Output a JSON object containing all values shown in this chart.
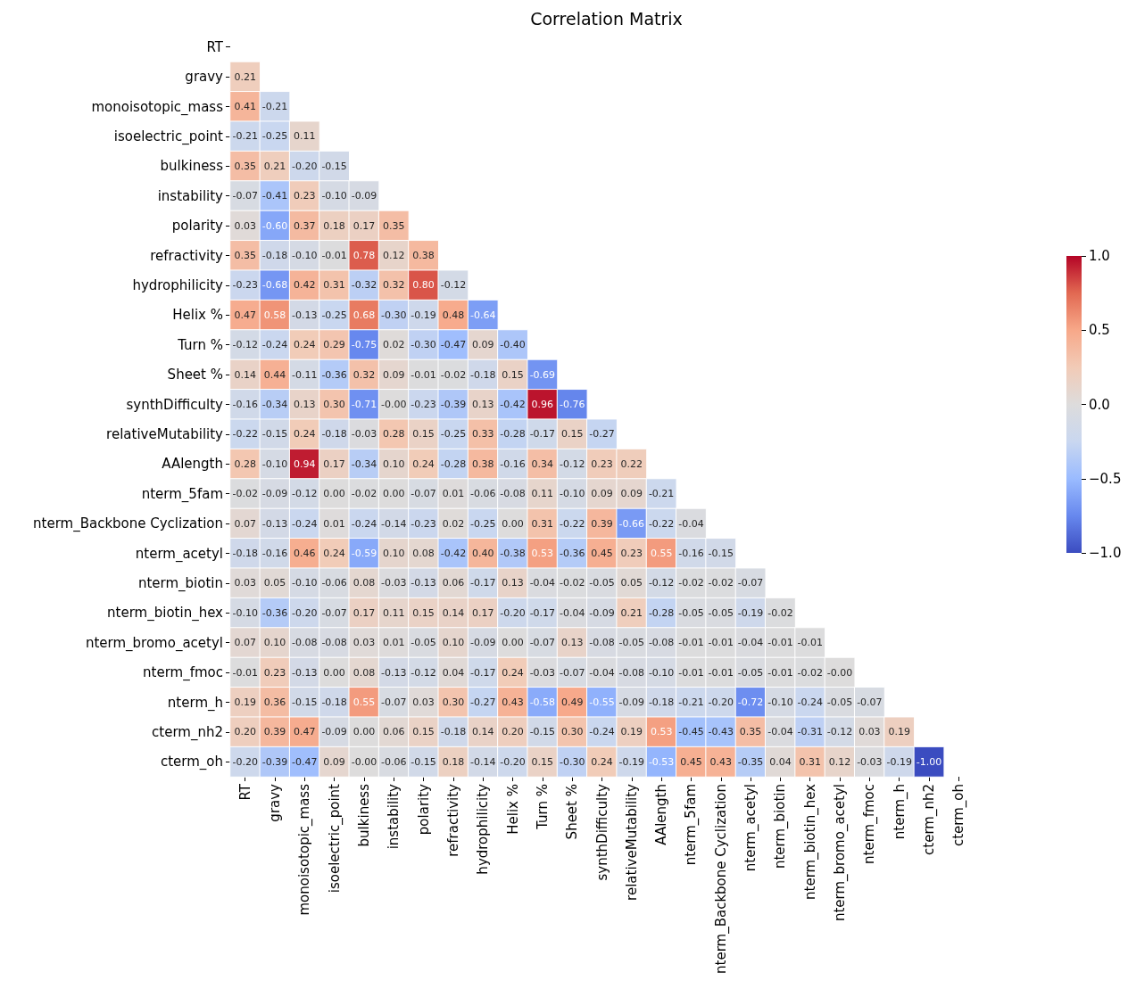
{
  "chart_data": {
    "type": "heatmap",
    "title": "Correlation Matrix",
    "categories": [
      "RT",
      "gravy",
      "monoisotopic_mass",
      "isoelectric_point",
      "bulkiness",
      "instability",
      "polarity",
      "refractivity",
      "hydrophilicity",
      "Helix %",
      "Turn %",
      "Sheet %",
      "synthDifficulty",
      "relativeMutability",
      "AAlength",
      "nterm_5fam",
      "nterm_Backbone Cyclization",
      "nterm_acetyl",
      "nterm_biotin",
      "nterm_biotin_hex",
      "nterm_bromo_acetyl",
      "nterm_fmoc",
      "nterm_h",
      "cterm_nh2",
      "cterm_oh"
    ],
    "y_categories": [
      "RT",
      "gravy",
      "monoisotopic_mass",
      "isoelectric_point",
      "bulkiness",
      "instability",
      "polarity",
      "refractivity",
      "hydrophilicity",
      "Helix %",
      "Turn %",
      "Sheet %",
      "synthDifficulty",
      "relativeMutability",
      "AAlength",
      "nterm_5fam",
      "nterm_Backbone Cyclization",
      "nterm_acetyl",
      "nterm_biotin",
      "nterm_biotin_hex",
      "nterm_bromo_acetyl",
      "nterm_fmoc",
      "nterm_h",
      "cterm_nh2",
      "cterm_oh"
    ],
    "cells": [
      [
        null,
        null,
        null,
        null,
        null,
        null,
        null,
        null,
        null,
        null,
        null,
        null,
        null,
        null,
        null,
        null,
        null,
        null,
        null,
        null,
        null,
        null,
        null,
        null,
        null
      ],
      [
        0.21,
        null,
        null,
        null,
        null,
        null,
        null,
        null,
        null,
        null,
        null,
        null,
        null,
        null,
        null,
        null,
        null,
        null,
        null,
        null,
        null,
        null,
        null,
        null,
        null
      ],
      [
        0.41,
        -0.21,
        null,
        null,
        null,
        null,
        null,
        null,
        null,
        null,
        null,
        null,
        null,
        null,
        null,
        null,
        null,
        null,
        null,
        null,
        null,
        null,
        null,
        null,
        null
      ],
      [
        -0.21,
        -0.25,
        0.11,
        null,
        null,
        null,
        null,
        null,
        null,
        null,
        null,
        null,
        null,
        null,
        null,
        null,
        null,
        null,
        null,
        null,
        null,
        null,
        null,
        null,
        null
      ],
      [
        0.35,
        0.21,
        -0.2,
        -0.15,
        null,
        null,
        null,
        null,
        null,
        null,
        null,
        null,
        null,
        null,
        null,
        null,
        null,
        null,
        null,
        null,
        null,
        null,
        null,
        null,
        null
      ],
      [
        -0.07,
        -0.41,
        0.23,
        -0.1,
        -0.09,
        null,
        null,
        null,
        null,
        null,
        null,
        null,
        null,
        null,
        null,
        null,
        null,
        null,
        null,
        null,
        null,
        null,
        null,
        null,
        null
      ],
      [
        0.03,
        -0.6,
        0.37,
        0.18,
        0.17,
        0.35,
        null,
        null,
        null,
        null,
        null,
        null,
        null,
        null,
        null,
        null,
        null,
        null,
        null,
        null,
        null,
        null,
        null,
        null,
        null
      ],
      [
        0.35,
        -0.18,
        -0.1,
        -0.01,
        0.78,
        0.12,
        0.38,
        null,
        null,
        null,
        null,
        null,
        null,
        null,
        null,
        null,
        null,
        null,
        null,
        null,
        null,
        null,
        null,
        null,
        null
      ],
      [
        -0.23,
        -0.68,
        0.42,
        0.31,
        -0.32,
        0.32,
        0.8,
        -0.12,
        null,
        null,
        null,
        null,
        null,
        null,
        null,
        null,
        null,
        null,
        null,
        null,
        null,
        null,
        null,
        null,
        null
      ],
      [
        0.47,
        0.58,
        -0.13,
        -0.25,
        0.68,
        -0.3,
        -0.19,
        0.48,
        -0.64,
        null,
        null,
        null,
        null,
        null,
        null,
        null,
        null,
        null,
        null,
        null,
        null,
        null,
        null,
        null,
        null
      ],
      [
        -0.12,
        -0.24,
        0.24,
        0.29,
        -0.75,
        0.02,
        -0.3,
        -0.47,
        0.09,
        -0.4,
        null,
        null,
        null,
        null,
        null,
        null,
        null,
        null,
        null,
        null,
        null,
        null,
        null,
        null,
        null
      ],
      [
        0.14,
        0.44,
        -0.11,
        -0.36,
        0.32,
        0.09,
        -0.01,
        -0.02,
        -0.18,
        0.15,
        -0.69,
        null,
        null,
        null,
        null,
        null,
        null,
        null,
        null,
        null,
        null,
        null,
        null,
        null,
        null
      ],
      [
        -0.16,
        -0.34,
        0.13,
        0.3,
        -0.71,
        -0.0,
        -0.23,
        -0.39,
        0.13,
        -0.42,
        0.96,
        -0.76,
        null,
        null,
        null,
        null,
        null,
        null,
        null,
        null,
        null,
        null,
        null,
        null,
        null
      ],
      [
        -0.22,
        -0.15,
        0.24,
        -0.18,
        -0.03,
        0.28,
        0.15,
        -0.25,
        0.33,
        -0.28,
        -0.17,
        0.15,
        -0.27,
        null,
        null,
        null,
        null,
        null,
        null,
        null,
        null,
        null,
        null,
        null,
        null
      ],
      [
        0.28,
        -0.1,
        0.94,
        0.17,
        -0.34,
        0.1,
        0.24,
        -0.28,
        0.38,
        -0.16,
        0.34,
        -0.12,
        0.23,
        0.22,
        null,
        null,
        null,
        null,
        null,
        null,
        null,
        null,
        null,
        null,
        null
      ],
      [
        -0.02,
        -0.09,
        -0.12,
        0.0,
        -0.02,
        0.0,
        -0.07,
        0.01,
        -0.06,
        -0.08,
        0.11,
        -0.1,
        0.09,
        0.09,
        -0.21,
        null,
        null,
        null,
        null,
        null,
        null,
        null,
        null,
        null,
        null
      ],
      [
        0.07,
        -0.13,
        -0.24,
        0.01,
        -0.24,
        -0.14,
        -0.23,
        0.02,
        -0.25,
        0.0,
        0.31,
        -0.22,
        0.39,
        -0.66,
        -0.22,
        -0.04,
        null,
        null,
        null,
        null,
        null,
        null,
        null,
        null,
        null
      ],
      [
        -0.18,
        -0.16,
        0.46,
        0.24,
        -0.59,
        0.1,
        0.08,
        -0.42,
        0.4,
        -0.38,
        0.53,
        -0.36,
        0.45,
        0.23,
        0.55,
        -0.16,
        -0.15,
        null,
        null,
        null,
        null,
        null,
        null,
        null,
        null
      ],
      [
        0.03,
        0.05,
        -0.1,
        -0.06,
        0.08,
        -0.03,
        -0.13,
        0.06,
        -0.17,
        0.13,
        -0.04,
        -0.02,
        -0.05,
        0.05,
        -0.12,
        -0.02,
        -0.02,
        -0.07,
        null,
        null,
        null,
        null,
        null,
        null,
        null
      ],
      [
        -0.1,
        -0.36,
        -0.2,
        -0.07,
        0.17,
        0.11,
        0.15,
        0.14,
        0.17,
        -0.2,
        -0.17,
        -0.04,
        -0.09,
        0.21,
        -0.28,
        -0.05,
        -0.05,
        -0.19,
        -0.02,
        null,
        null,
        null,
        null,
        null,
        null
      ],
      [
        0.07,
        0.1,
        -0.08,
        -0.08,
        0.03,
        0.01,
        -0.05,
        0.1,
        -0.09,
        0.0,
        -0.07,
        0.13,
        -0.08,
        -0.05,
        -0.08,
        -0.01,
        -0.01,
        -0.04,
        -0.01,
        -0.01,
        null,
        null,
        null,
        null,
        null
      ],
      [
        -0.01,
        0.23,
        -0.13,
        0.0,
        0.08,
        -0.13,
        -0.12,
        0.04,
        -0.17,
        0.24,
        -0.03,
        -0.07,
        -0.04,
        -0.08,
        -0.1,
        -0.01,
        -0.01,
        -0.05,
        -0.01,
        -0.02,
        -0.0,
        null,
        null,
        null,
        null
      ],
      [
        0.19,
        0.36,
        -0.15,
        -0.18,
        0.55,
        -0.07,
        0.03,
        0.3,
        -0.27,
        0.43,
        -0.58,
        0.49,
        -0.55,
        -0.09,
        -0.18,
        -0.21,
        -0.2,
        -0.72,
        -0.1,
        -0.24,
        -0.05,
        -0.07,
        null,
        null,
        null
      ],
      [
        0.2,
        0.39,
        0.47,
        -0.09,
        0.0,
        0.06,
        0.15,
        -0.18,
        0.14,
        0.2,
        -0.15,
        0.3,
        -0.24,
        0.19,
        0.53,
        -0.45,
        -0.43,
        0.35,
        -0.04,
        -0.31,
        -0.12,
        0.03,
        0.19,
        null,
        null
      ],
      [
        -0.2,
        -0.39,
        -0.47,
        0.09,
        -0.0,
        -0.06,
        -0.15,
        0.18,
        -0.14,
        -0.2,
        0.15,
        -0.3,
        0.24,
        -0.19,
        -0.53,
        0.45,
        0.43,
        -0.35,
        0.04,
        0.31,
        0.12,
        -0.03,
        -0.19,
        -1.0,
        null
      ]
    ],
    "cell_labels": [
      [
        null,
        null,
        null,
        null,
        null,
        null,
        null,
        null,
        null,
        null,
        null,
        null,
        null,
        null,
        null,
        null,
        null,
        null,
        null,
        null,
        null,
        null,
        null,
        null,
        null
      ],
      [
        "0.21",
        null,
        null,
        null,
        null,
        null,
        null,
        null,
        null,
        null,
        null,
        null,
        null,
        null,
        null,
        null,
        null,
        null,
        null,
        null,
        null,
        null,
        null,
        null,
        null
      ],
      [
        "0.41",
        "-0.21",
        null,
        null,
        null,
        null,
        null,
        null,
        null,
        null,
        null,
        null,
        null,
        null,
        null,
        null,
        null,
        null,
        null,
        null,
        null,
        null,
        null,
        null,
        null
      ],
      [
        "-0.21",
        "-0.25",
        "0.11",
        null,
        null,
        null,
        null,
        null,
        null,
        null,
        null,
        null,
        null,
        null,
        null,
        null,
        null,
        null,
        null,
        null,
        null,
        null,
        null,
        null,
        null
      ],
      [
        "0.35",
        "0.21",
        "-0.20",
        "-0.15",
        null,
        null,
        null,
        null,
        null,
        null,
        null,
        null,
        null,
        null,
        null,
        null,
        null,
        null,
        null,
        null,
        null,
        null,
        null,
        null,
        null
      ],
      [
        "-0.07",
        "-0.41",
        "0.23",
        "-0.10",
        "-0.09",
        null,
        null,
        null,
        null,
        null,
        null,
        null,
        null,
        null,
        null,
        null,
        null,
        null,
        null,
        null,
        null,
        null,
        null,
        null,
        null
      ],
      [
        "0.03",
        "-0.60",
        "0.37",
        "0.18",
        "0.17",
        "0.35",
        null,
        null,
        null,
        null,
        null,
        null,
        null,
        null,
        null,
        null,
        null,
        null,
        null,
        null,
        null,
        null,
        null,
        null,
        null
      ],
      [
        "0.35",
        "-0.18",
        "-0.10",
        "-0.01",
        "0.78",
        "0.12",
        "0.38",
        null,
        null,
        null,
        null,
        null,
        null,
        null,
        null,
        null,
        null,
        null,
        null,
        null,
        null,
        null,
        null,
        null,
        null
      ],
      [
        "-0.23",
        "-0.68",
        "0.42",
        "0.31",
        "-0.32",
        "0.32",
        "0.80",
        "-0.12",
        null,
        null,
        null,
        null,
        null,
        null,
        null,
        null,
        null,
        null,
        null,
        null,
        null,
        null,
        null,
        null,
        null
      ],
      [
        "0.47",
        "0.58",
        "-0.13",
        "-0.25",
        "0.68",
        "-0.30",
        "-0.19",
        "0.48",
        "-0.64",
        null,
        null,
        null,
        null,
        null,
        null,
        null,
        null,
        null,
        null,
        null,
        null,
        null,
        null,
        null,
        null
      ],
      [
        "-0.12",
        "-0.24",
        "0.24",
        "0.29",
        "-0.75",
        "0.02",
        "-0.30",
        "-0.47",
        "0.09",
        "-0.40",
        null,
        null,
        null,
        null,
        null,
        null,
        null,
        null,
        null,
        null,
        null,
        null,
        null,
        null,
        null
      ],
      [
        "0.14",
        "0.44",
        "-0.11",
        "-0.36",
        "0.32",
        "0.09",
        "-0.01",
        "-0.02",
        "-0.18",
        "0.15",
        "-0.69",
        null,
        null,
        null,
        null,
        null,
        null,
        null,
        null,
        null,
        null,
        null,
        null,
        null,
        null
      ],
      [
        "-0.16",
        "-0.34",
        "0.13",
        "0.30",
        "-0.71",
        "-0.00",
        "-0.23",
        "-0.39",
        "0.13",
        "-0.42",
        "0.96",
        "-0.76",
        null,
        null,
        null,
        null,
        null,
        null,
        null,
        null,
        null,
        null,
        null,
        null,
        null
      ],
      [
        "-0.22",
        "-0.15",
        "0.24",
        "-0.18",
        "-0.03",
        "0.28",
        "0.15",
        "-0.25",
        "0.33",
        "-0.28",
        "-0.17",
        "0.15",
        "-0.27",
        null,
        null,
        null,
        null,
        null,
        null,
        null,
        null,
        null,
        null,
        null,
        null
      ],
      [
        "0.28",
        "-0.10",
        "0.94",
        "0.17",
        "-0.34",
        "0.10",
        "0.24",
        "-0.28",
        "0.38",
        "-0.16",
        "0.34",
        "-0.12",
        "0.23",
        "0.22",
        null,
        null,
        null,
        null,
        null,
        null,
        null,
        null,
        null,
        null,
        null
      ],
      [
        "-0.02",
        "-0.09",
        "-0.12",
        "0.00",
        "-0.02",
        "0.00",
        "-0.07",
        "0.01",
        "-0.06",
        "-0.08",
        "0.11",
        "-0.10",
        "0.09",
        "0.09",
        "-0.21",
        null,
        null,
        null,
        null,
        null,
        null,
        null,
        null,
        null,
        null
      ],
      [
        "0.07",
        "-0.13",
        "-0.24",
        "0.01",
        "-0.24",
        "-0.14",
        "-0.23",
        "0.02",
        "-0.25",
        "0.00",
        "0.31",
        "-0.22",
        "0.39",
        "-0.66",
        "-0.22",
        "-0.04",
        null,
        null,
        null,
        null,
        null,
        null,
        null,
        null,
        null
      ],
      [
        "-0.18",
        "-0.16",
        "0.46",
        "0.24",
        "-0.59",
        "0.10",
        "0.08",
        "-0.42",
        "0.40",
        "-0.38",
        "0.53",
        "-0.36",
        "0.45",
        "0.23",
        "0.55",
        "-0.16",
        "-0.15",
        null,
        null,
        null,
        null,
        null,
        null,
        null,
        null
      ],
      [
        "0.03",
        "0.05",
        "-0.10",
        "-0.06",
        "0.08",
        "-0.03",
        "-0.13",
        "0.06",
        "-0.17",
        "0.13",
        "-0.04",
        "-0.02",
        "-0.05",
        "0.05",
        "-0.12",
        "-0.02",
        "-0.02",
        "-0.07",
        null,
        null,
        null,
        null,
        null,
        null,
        null
      ],
      [
        "-0.10",
        "-0.36",
        "-0.20",
        "-0.07",
        "0.17",
        "0.11",
        "0.15",
        "0.14",
        "0.17",
        "-0.20",
        "-0.17",
        "-0.04",
        "-0.09",
        "0.21",
        "-0.28",
        "-0.05",
        "-0.05",
        "-0.19",
        "-0.02",
        null,
        null,
        null,
        null,
        null,
        null
      ],
      [
        "0.07",
        "0.10",
        "-0.08",
        "-0.08",
        "0.03",
        "0.01",
        "-0.05",
        "0.10",
        "-0.09",
        "0.00",
        "-0.07",
        "0.13",
        "-0.08",
        "-0.05",
        "-0.08",
        "-0.01",
        "-0.01",
        "-0.04",
        "-0.01",
        "-0.01",
        null,
        null,
        null,
        null,
        null
      ],
      [
        "-0.01",
        "0.23",
        "-0.13",
        "0.00",
        "0.08",
        "-0.13",
        "-0.12",
        "0.04",
        "-0.17",
        "0.24",
        "-0.03",
        "-0.07",
        "-0.04",
        "-0.08",
        "-0.10",
        "-0.01",
        "-0.01",
        "-0.05",
        "-0.01",
        "-0.02",
        "-0.00",
        null,
        null,
        null,
        null
      ],
      [
        "0.19",
        "0.36",
        "-0.15",
        "-0.18",
        "0.55",
        "-0.07",
        "0.03",
        "0.30",
        "-0.27",
        "0.43",
        "-0.58",
        "0.49",
        "-0.55",
        "-0.09",
        "-0.18",
        "-0.21",
        "-0.20",
        "-0.72",
        "-0.10",
        "-0.24",
        "-0.05",
        "-0.07",
        null,
        null,
        null
      ],
      [
        "0.20",
        "0.39",
        "0.47",
        "-0.09",
        "0.00",
        "0.06",
        "0.15",
        "-0.18",
        "0.14",
        "0.20",
        "-0.15",
        "0.30",
        "-0.24",
        "0.19",
        "0.53",
        "-0.45",
        "-0.43",
        "0.35",
        "-0.04",
        "-0.31",
        "-0.12",
        "0.03",
        "0.19",
        null,
        null
      ],
      [
        "-0.20",
        "-0.39",
        "-0.47",
        "0.09",
        "-0.00",
        "-0.06",
        "-0.15",
        "0.18",
        "-0.14",
        "-0.20",
        "0.15",
        "-0.30",
        "0.24",
        "-0.19",
        "-0.53",
        "0.45",
        "0.43",
        "-0.35",
        "0.04",
        "0.31",
        "0.12",
        "-0.03",
        "-0.19",
        "-1.00",
        null
      ]
    ],
    "data_labels": true,
    "clim": [
      -1,
      1
    ],
    "cticks": [
      {
        "value": -1,
        "label": "−1.0"
      },
      {
        "value": -0.5,
        "label": "−0.5"
      },
      {
        "value": 0,
        "label": "0.0"
      },
      {
        "value": 0.5,
        "label": "0.5"
      },
      {
        "value": 1,
        "label": "1.0"
      }
    ]
  }
}
